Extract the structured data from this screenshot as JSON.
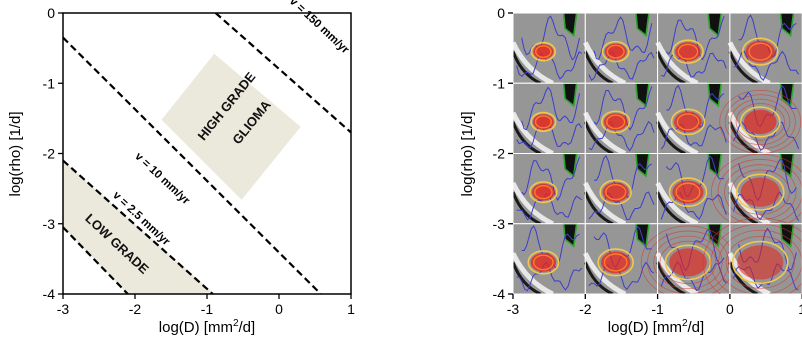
{
  "chart_data": [
    {
      "type": "line",
      "title": "",
      "xlabel": "log(D) [mm²/d]",
      "ylabel": "log(rho) [1/d]",
      "xlim": [
        -3,
        1
      ],
      "ylim": [
        -4,
        0
      ],
      "xticks": [
        "-3",
        "-2",
        "-1",
        "0",
        "1"
      ],
      "yticks": [
        "0",
        "-1",
        "-2",
        "-3",
        "-4"
      ],
      "grid": false,
      "series": [
        {
          "name": "v = 150 mm/yr",
          "style": "dashed",
          "points": [
            [
              -0.88,
              0
            ],
            [
              1,
              -1.7
            ]
          ]
        },
        {
          "name": "v = 10 mm/yr",
          "style": "dashed",
          "points": [
            [
              -3,
              -0.35
            ],
            [
              0.58,
              -4
            ]
          ]
        },
        {
          "name": "v = 2.5 mm/yr",
          "style": "dashed",
          "points": [
            [
              -3,
              -2.1
            ],
            [
              -0.92,
              -4
            ]
          ]
        },
        {
          "name": "",
          "style": "dashed",
          "points": [
            [
              -3,
              -3.05
            ],
            [
              -2.1,
              -4
            ]
          ]
        }
      ],
      "regions": [
        {
          "label": "HIGH GRADE GLIOMA",
          "color": "#ebe8dc",
          "polygon": [
            [
              -0.9,
              -0.58
            ],
            [
              0.3,
              -1.62
            ],
            [
              -0.52,
              -2.66
            ],
            [
              -1.63,
              -1.52
            ]
          ]
        },
        {
          "label": "LOW GRADE",
          "color": "#ebe8dc",
          "polygon": [
            [
              -3,
              -2.1
            ],
            [
              -0.9,
              -4
            ],
            [
              -2.1,
              -4
            ],
            [
              -3,
              -3.05
            ]
          ]
        }
      ]
    },
    {
      "type": "image-grid",
      "title": "",
      "xlabel": "log(D) [mm²/d]",
      "ylabel": "log(rho) [1/d]",
      "xlim": [
        -3,
        1
      ],
      "ylim": [
        -4,
        0
      ],
      "xticks": [
        "-3",
        "-2",
        "-1",
        "0",
        "1"
      ],
      "yticks": [
        "0",
        "-1",
        "-2",
        "-3",
        "-4"
      ],
      "rows": 4,
      "cols": 4,
      "tumor_size_grid": [
        [
          0.22,
          0.28,
          0.38,
          0.5
        ],
        [
          0.24,
          0.32,
          0.45,
          0.6
        ],
        [
          0.3,
          0.4,
          0.55,
          0.8
        ],
        [
          0.38,
          0.5,
          0.75,
          1.0
        ]
      ],
      "colors": {
        "tumor": "#e8231a",
        "contour_outer": "#f2c84b",
        "contour_inner": "#ff7a2a",
        "wm": "#3d3dcc",
        "csf": "#2fa32f"
      }
    }
  ],
  "left_panel": {
    "annotations": {
      "v150": "v = 150 mm/yr",
      "v10": "v = 10 mm/yr",
      "v25": "v = 2.5 mm/yr",
      "high1": "HIGH GRADE",
      "high2": "GLIOMA",
      "low": "LOW GRADE"
    }
  },
  "right_panel": {}
}
